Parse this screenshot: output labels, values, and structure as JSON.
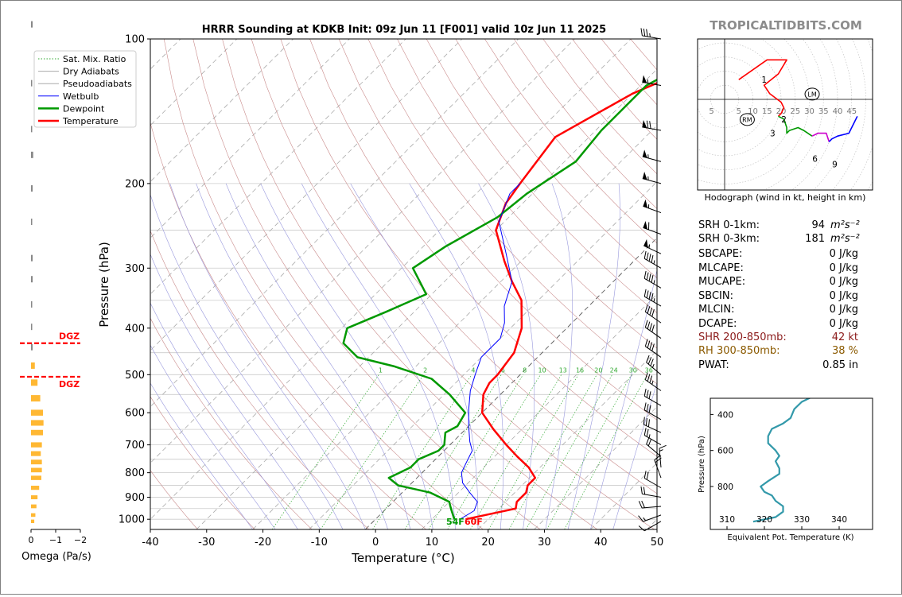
{
  "title": "HRRR Sounding at KDKB Init: 09z Jun 11 [F001] valid 10z Jun 11 2025",
  "watermark": "TROPICALTIDBITS.COM",
  "colors": {
    "temperature": "#ff0000",
    "dewpoint": "#009900",
    "wetbulb": "#0000ff",
    "dry_adiabats": "#c98b8b",
    "pseudoadiabats": "#9999dd",
    "mixing_ratio": "#33aa33",
    "omega_bar": "#ffb833",
    "dgz": "#ff0000",
    "shr": "#8b1a1a",
    "rh": "#8b5a00",
    "hodo_red": "#ff0000",
    "hodo_green": "#009900",
    "hodo_magenta": "#cc00cc",
    "hodo_blue": "#0000ff",
    "theta_e": "#3399aa"
  },
  "legend": [
    {
      "label": "Sat. Mix. Ratio",
      "style": "mix"
    },
    {
      "label": "Dry Adiabats",
      "style": "dry"
    },
    {
      "label": "Pseudoadiabats",
      "style": "pseudo"
    },
    {
      "label": "Wetbulb",
      "style": "wetbulb"
    },
    {
      "label": "Dewpoint",
      "style": "dewpoint"
    },
    {
      "label": "Temperature",
      "style": "temperature"
    }
  ],
  "chart_data": [
    {
      "type": "line",
      "name": "skew-t",
      "xlabel": "Temperature (°C)",
      "ylabel": "Pressure (hPa)",
      "xlim": [
        -40,
        50
      ],
      "ylim": [
        1050,
        100
      ],
      "x_ticks": [
        -40,
        -30,
        -20,
        -10,
        0,
        10,
        20,
        30,
        40,
        50
      ],
      "y_ticks": [
        100,
        200,
        300,
        400,
        500,
        600,
        700,
        800,
        900,
        1000
      ],
      "log_pressure": true,
      "mixing_ratio_labels": [
        1,
        2,
        4,
        6,
        8,
        10,
        13,
        16,
        20,
        24,
        30,
        36
      ],
      "surface_dewpoint_label": "54F",
      "surface_temperature_label": "60F",
      "series": [
        {
          "name": "Temperature",
          "style": "temperature",
          "points": [
            [
              16,
              1000
            ],
            [
              23,
              950
            ],
            [
              22,
              920
            ],
            [
              22,
              880
            ],
            [
              21,
              850
            ],
            [
              21,
              820
            ],
            [
              18,
              780
            ],
            [
              14,
              740
            ],
            [
              10,
              700
            ],
            [
              5,
              650
            ],
            [
              0,
              600
            ],
            [
              -3,
              550
            ],
            [
              -4,
              520
            ],
            [
              -4,
              500
            ],
            [
              -5,
              450
            ],
            [
              -8,
              400
            ],
            [
              -13,
              350
            ],
            [
              -18,
              320
            ],
            [
              -23,
              290
            ],
            [
              -30,
              250
            ],
            [
              -33,
              220
            ],
            [
              -34,
              200
            ],
            [
              -36,
              160
            ],
            [
              -30,
              130
            ],
            [
              -24,
              115
            ],
            [
              -17,
              100
            ]
          ]
        },
        {
          "name": "Dewpoint",
          "style": "dewpoint",
          "points": [
            [
              14,
              1000
            ],
            [
              12,
              960
            ],
            [
              11,
              940
            ],
            [
              10,
              920
            ],
            [
              5,
              880
            ],
            [
              -2,
              850
            ],
            [
              -5,
              820
            ],
            [
              -4,
              800
            ],
            [
              -3,
              780
            ],
            [
              -3,
              750
            ],
            [
              -1,
              720
            ],
            [
              -1,
              700
            ],
            [
              -2,
              680
            ],
            [
              -3,
              660
            ],
            [
              -2,
              640
            ],
            [
              -3,
              600
            ],
            [
              -9,
              550
            ],
            [
              -15,
              510
            ],
            [
              -24,
              480
            ],
            [
              -32,
              460
            ],
            [
              -37,
              430
            ],
            [
              -39,
              400
            ],
            [
              -35,
              370
            ],
            [
              -31,
              340
            ],
            [
              -38,
              300
            ],
            [
              -36,
              270
            ],
            [
              -32,
              235
            ],
            [
              -31,
              210
            ],
            [
              -28,
              180
            ],
            [
              -29,
              155
            ],
            [
              -29,
              125
            ],
            [
              -25,
              110
            ],
            [
              -16,
              100
            ]
          ]
        },
        {
          "name": "Wetbulb",
          "style": "wetbulb",
          "points": [
            [
              15,
              1000
            ],
            [
              16,
              960
            ],
            [
              15,
              920
            ],
            [
              12,
              880
            ],
            [
              9,
              840
            ],
            [
              7,
              800
            ],
            [
              6,
              760
            ],
            [
              5,
              720
            ],
            [
              3,
              690
            ],
            [
              0,
              640
            ],
            [
              -3,
              590
            ],
            [
              -6,
              540
            ],
            [
              -8,
              500
            ],
            [
              -10,
              460
            ],
            [
              -10,
              420
            ],
            [
              -12,
              390
            ],
            [
              -15,
              360
            ],
            [
              -18,
              320
            ],
            [
              -24,
              280
            ],
            [
              -31,
              240
            ],
            [
              -34,
              210
            ],
            [
              -34,
              200
            ]
          ]
        }
      ]
    },
    {
      "type": "bar",
      "name": "omega",
      "xlabel": "Omega (Pa/s)",
      "x_ticks": [
        "0",
        "−1",
        "−2"
      ],
      "dgz_label": "DGZ",
      "dgz_levels": [
        430,
        505
      ],
      "values": [
        [
          0.03,
          100
        ],
        [
          0.02,
          130
        ],
        [
          0.02,
          160
        ],
        [
          0.04,
          180
        ],
        [
          0.03,
          210
        ],
        [
          0.02,
          245
        ],
        [
          0.03,
          290
        ],
        [
          0.03,
          320
        ],
        [
          0.02,
          360
        ],
        [
          0.02,
          400
        ],
        [
          0.03,
          440
        ],
        [
          0.07,
          480
        ],
        [
          0.12,
          520
        ],
        [
          0.17,
          560
        ],
        [
          0.22,
          600
        ],
        [
          0.23,
          630
        ],
        [
          0.22,
          660
        ],
        [
          0.2,
          700
        ],
        [
          0.18,
          730
        ],
        [
          0.2,
          760
        ],
        [
          0.2,
          790
        ],
        [
          0.19,
          820
        ],
        [
          0.15,
          860
        ],
        [
          0.12,
          900
        ],
        [
          0.1,
          940
        ],
        [
          0.08,
          980
        ],
        [
          0.06,
          1010
        ]
      ]
    },
    {
      "type": "line",
      "name": "hodograph",
      "caption": "Hodograph (wind in kt, height in km)",
      "ring_labels": [
        "5",
        "5",
        "10",
        "15",
        "20",
        "25",
        "30",
        "35",
        "40",
        "45"
      ],
      "markers": [
        "LM",
        "RM"
      ],
      "height_labels": [
        "1",
        "2",
        "3",
        "6",
        "9"
      ],
      "series": [
        {
          "name": "0-3km",
          "style": "hodo_red",
          "points": [
            [
              5,
              7
            ],
            [
              15,
              14
            ],
            [
              22,
              14
            ],
            [
              19,
              9
            ],
            [
              14,
              5
            ],
            [
              16,
              2
            ],
            [
              20,
              -1
            ],
            [
              21,
              -3
            ],
            [
              20,
              -5
            ],
            [
              19,
              -6
            ]
          ]
        },
        {
          "name": "3-6km",
          "style": "hodo_green",
          "points": [
            [
              19,
              -6
            ],
            [
              21,
              -7
            ],
            [
              22,
              -10
            ],
            [
              22,
              -12
            ],
            [
              23,
              -11
            ],
            [
              26,
              -10
            ],
            [
              28,
              -11
            ],
            [
              31,
              -13
            ]
          ]
        },
        {
          "name": "6-9km",
          "style": "hodo_magenta",
          "points": [
            [
              31,
              -13
            ],
            [
              33,
              -12
            ],
            [
              36,
              -12
            ],
            [
              37,
              -15
            ]
          ]
        },
        {
          "name": "9+km",
          "style": "hodo_blue",
          "points": [
            [
              37,
              -15
            ],
            [
              38,
              -14
            ],
            [
              40,
              -13
            ],
            [
              44,
              -12
            ],
            [
              46,
              -8
            ],
            [
              47,
              -6
            ]
          ]
        }
      ],
      "lm": [
        31,
        2
      ],
      "rm": [
        8,
        -7
      ]
    },
    {
      "type": "line",
      "name": "theta-e",
      "xlabel": "Equivalent Pot. Temperature (K)",
      "ylabel": "Pressure (hPa)",
      "x_ticks": [
        310,
        320,
        330,
        340
      ],
      "y_ticks": [
        400,
        600,
        800
      ],
      "series": [
        {
          "name": "Equivalent Pot. Temperature",
          "style": "theta_e",
          "points": [
            [
              333,
              300
            ],
            [
              330,
              330
            ],
            [
              328,
              370
            ],
            [
              327,
              420
            ],
            [
              325,
              450
            ],
            [
              322,
              480
            ],
            [
              321,
              520
            ],
            [
              321,
              560
            ],
            [
              323,
              600
            ],
            [
              324,
              630
            ],
            [
              323,
              660
            ],
            [
              324,
              700
            ],
            [
              324,
              730
            ],
            [
              321,
              770
            ],
            [
              319,
              800
            ],
            [
              320,
              830
            ],
            [
              322,
              850
            ],
            [
              323,
              880
            ],
            [
              325,
              910
            ],
            [
              325,
              940
            ],
            [
              323,
              970
            ],
            [
              317,
              995
            ]
          ]
        }
      ]
    }
  ],
  "params": {
    "srh01": {
      "label": "SRH 0-1km:",
      "value": "94",
      "unit": "m²s⁻²"
    },
    "srh03": {
      "label": "SRH 0-3km:",
      "value": "181",
      "unit": "m²s⁻²"
    },
    "sbcape": {
      "label": "SBCAPE:",
      "value": "0 J/kg"
    },
    "mlcape": {
      "label": "MLCAPE:",
      "value": "0 J/kg"
    },
    "mucape": {
      "label": "MUCAPE:",
      "value": "0 J/kg"
    },
    "sbcin": {
      "label": "SBCIN:",
      "value": "0 J/kg"
    },
    "mlcin": {
      "label": "MLCIN:",
      "value": "0 J/kg"
    },
    "dcape": {
      "label": "DCAPE:",
      "value": "0 J/kg"
    },
    "shr": {
      "label": "SHR 200-850mb:",
      "value": "42 kt"
    },
    "rh": {
      "label": "RH 300-850mb:",
      "value": "38 %"
    },
    "pwat": {
      "label": "PWAT:",
      "value": "0.85 in"
    }
  },
  "wind_barbs": [
    {
      "p": 100,
      "dir": 280,
      "kt": 35
    },
    {
      "p": 125,
      "dir": 280,
      "kt": 55
    },
    {
      "p": 155,
      "dir": 280,
      "kt": 70
    },
    {
      "p": 180,
      "dir": 285,
      "kt": 55
    },
    {
      "p": 200,
      "dir": 285,
      "kt": 55
    },
    {
      "p": 230,
      "dir": 290,
      "kt": 55
    },
    {
      "p": 255,
      "dir": 290,
      "kt": 60
    },
    {
      "p": 280,
      "dir": 295,
      "kt": 55
    },
    {
      "p": 300,
      "dir": 300,
      "kt": 45
    },
    {
      "p": 330,
      "dir": 300,
      "kt": 45
    },
    {
      "p": 360,
      "dir": 300,
      "kt": 45
    },
    {
      "p": 390,
      "dir": 305,
      "kt": 40
    },
    {
      "p": 420,
      "dir": 305,
      "kt": 40
    },
    {
      "p": 460,
      "dir": 305,
      "kt": 40
    },
    {
      "p": 500,
      "dir": 310,
      "kt": 35
    },
    {
      "p": 540,
      "dir": 305,
      "kt": 35
    },
    {
      "p": 580,
      "dir": 300,
      "kt": 30
    },
    {
      "p": 620,
      "dir": 300,
      "kt": 30
    },
    {
      "p": 660,
      "dir": 295,
      "kt": 30
    },
    {
      "p": 700,
      "dir": 300,
      "kt": 25
    },
    {
      "p": 740,
      "dir": 310,
      "kt": 20
    },
    {
      "p": 780,
      "dir": 355,
      "kt": 15
    },
    {
      "p": 820,
      "dir": 340,
      "kt": 20
    },
    {
      "p": 860,
      "dir": 300,
      "kt": 20
    },
    {
      "p": 900,
      "dir": 280,
      "kt": 20
    },
    {
      "p": 940,
      "dir": 265,
      "kt": 20
    },
    {
      "p": 980,
      "dir": 250,
      "kt": 15
    },
    {
      "p": 1010,
      "dir": 240,
      "kt": 10
    }
  ]
}
